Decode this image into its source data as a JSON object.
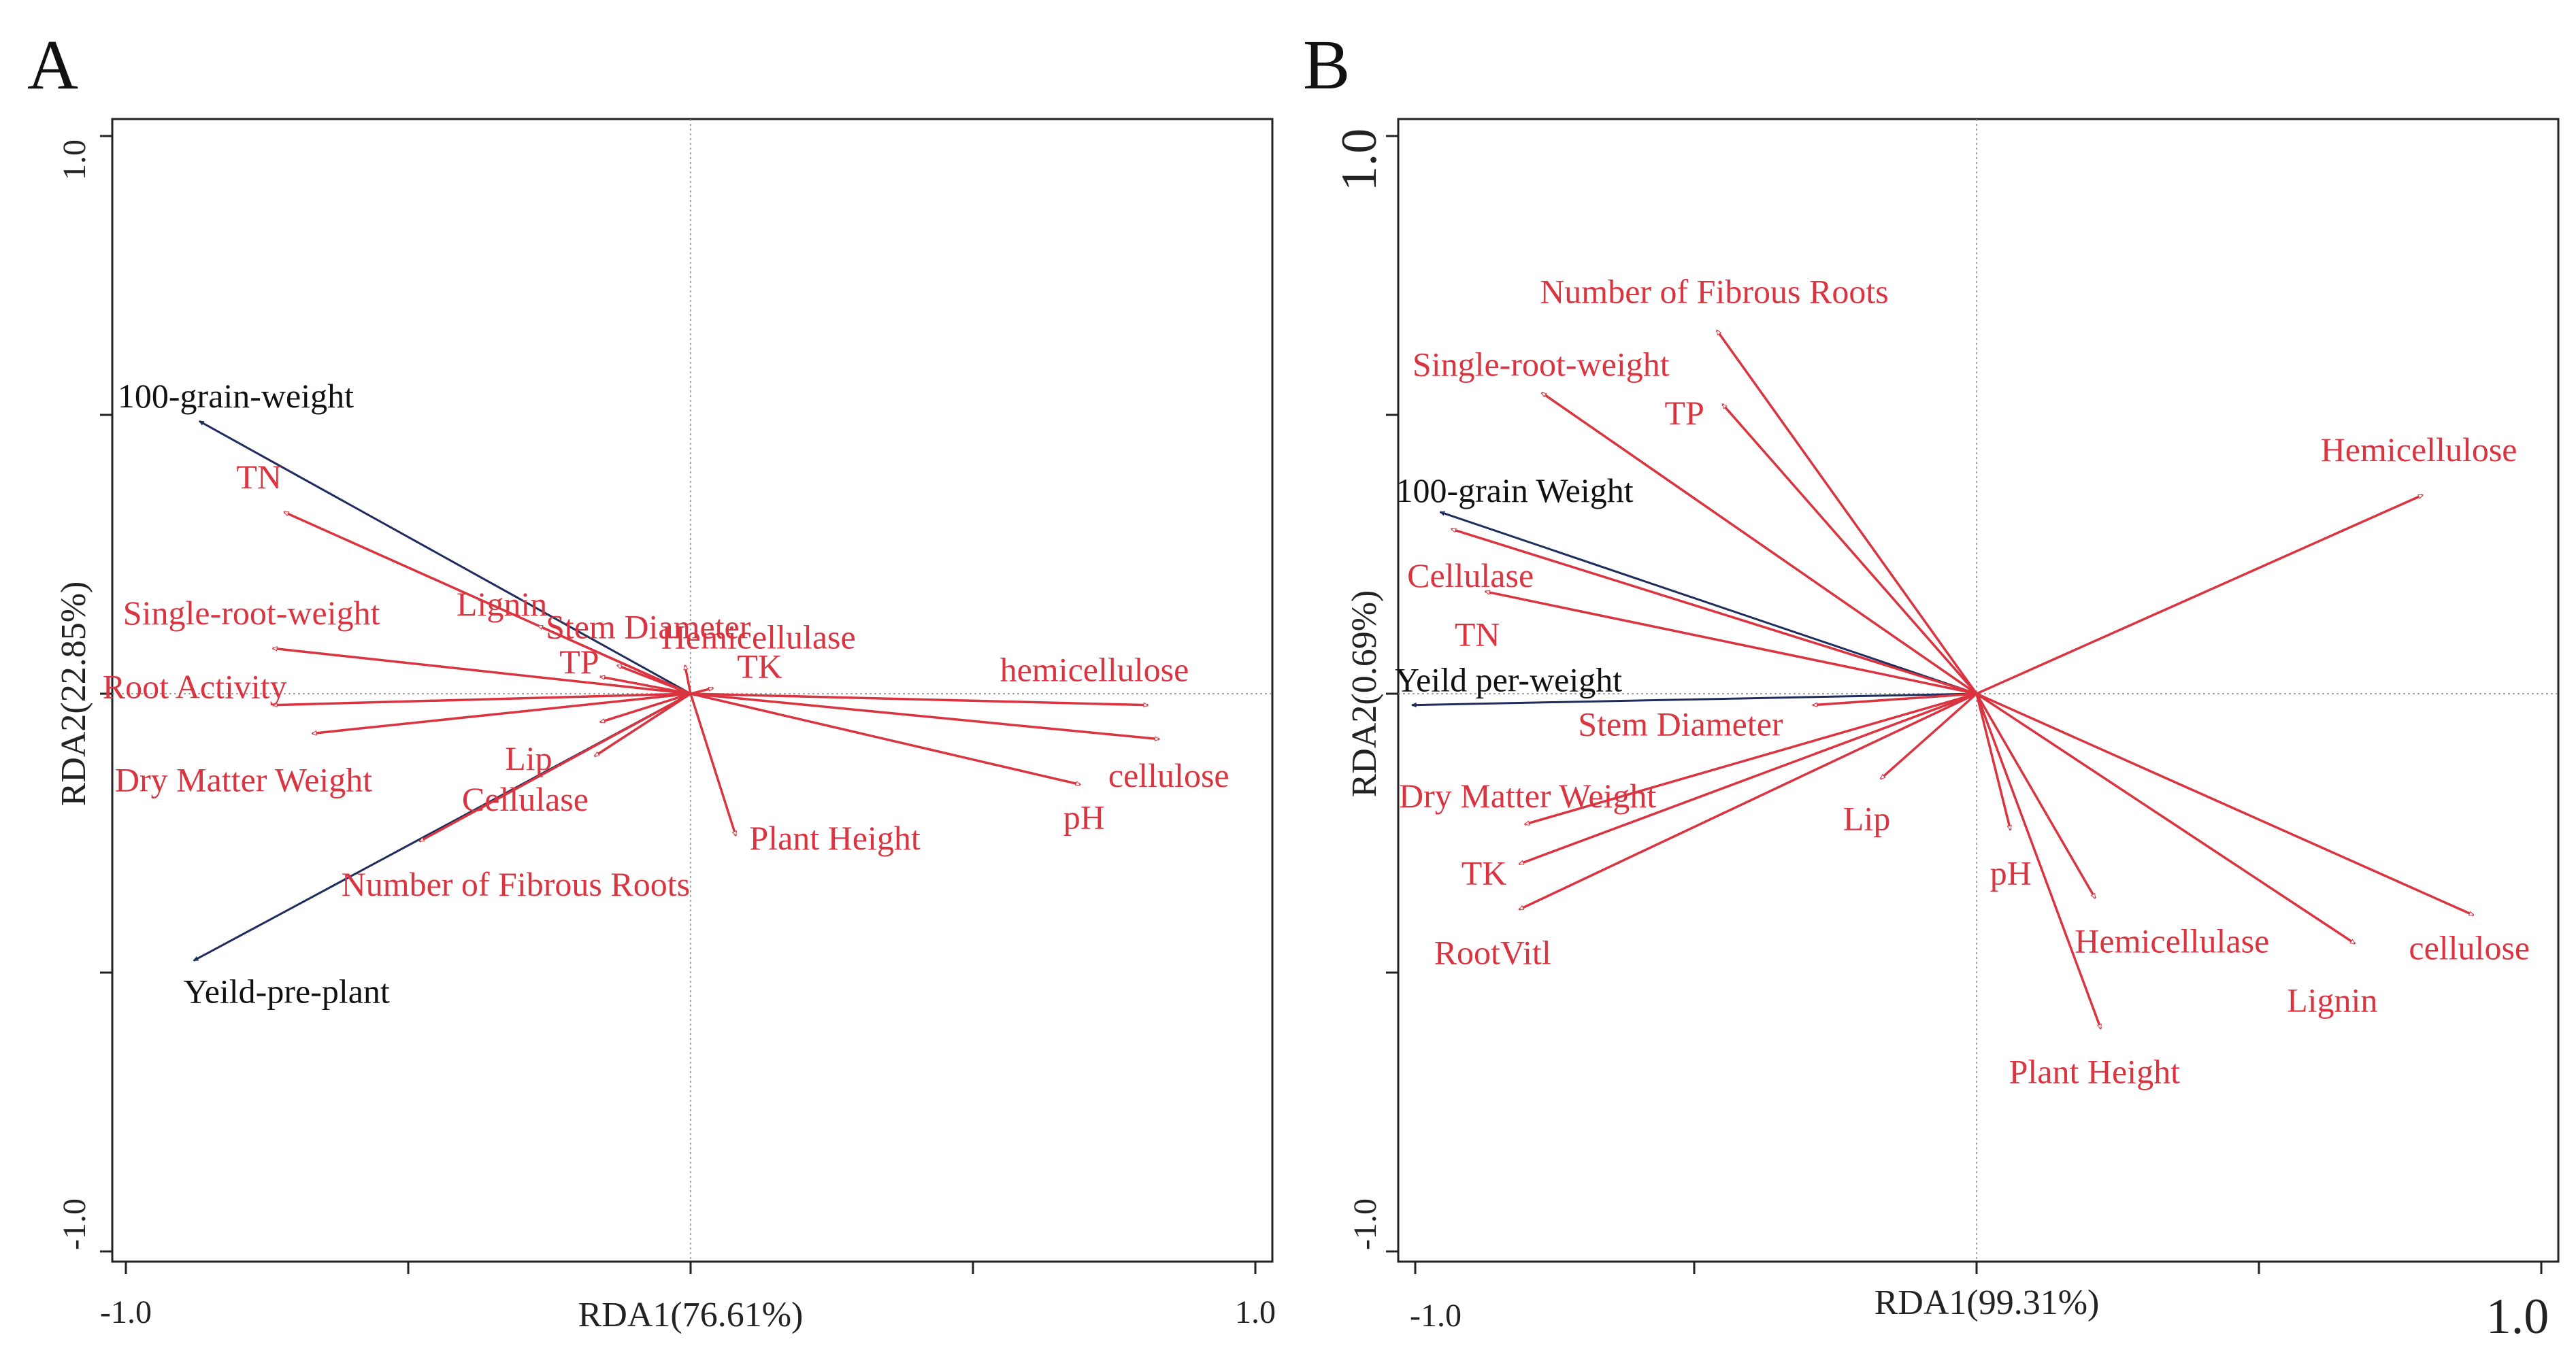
{
  "chart_data": [
    {
      "panel_label": "A",
      "type": "biplot",
      "xlabel": "RDA1(76.61%)",
      "ylabel": "RDA2(22.85%)",
      "xlim": [
        -1.0,
        1.0
      ],
      "ylim": [
        -1.0,
        1.0
      ],
      "x_tick_labels": [
        "-1.0",
        "1.0"
      ],
      "y_tick_labels": [
        "-1.0",
        "1.0"
      ],
      "series": [
        {
          "name": "response",
          "color": "#1f2d5c",
          "points": [
            {
              "label": "100-grain-weight",
              "x": -0.87,
              "y": 0.48
            },
            {
              "label": "Yeild-pre-plant",
              "x": -0.88,
              "y": -0.47
            }
          ]
        },
        {
          "name": "explanatory",
          "color": "#d9343f",
          "points": [
            {
              "label": "TN",
              "x": -0.72,
              "y": 0.32
            },
            {
              "label": "Single-root-weight",
              "x": -0.74,
              "y": 0.08
            },
            {
              "label": "Root Activity",
              "x": -0.74,
              "y": -0.02
            },
            {
              "label": "Dry Matter Weight",
              "x": -0.67,
              "y": -0.07
            },
            {
              "label": "Number of Fibrous Roots",
              "x": -0.48,
              "y": -0.26
            },
            {
              "label": "Lignin",
              "x": -0.27,
              "y": 0.12
            },
            {
              "label": "Stem Diameter",
              "x": -0.13,
              "y": 0.05
            },
            {
              "label": "TP",
              "x": -0.16,
              "y": 0.03
            },
            {
              "label": "Hemicellulase",
              "x": -0.01,
              "y": 0.05
            },
            {
              "label": "Lip",
              "x": -0.16,
              "y": -0.05
            },
            {
              "label": "Cellulase",
              "x": -0.17,
              "y": -0.11
            },
            {
              "label": "TK",
              "x": 0.04,
              "y": 0.01
            },
            {
              "label": "Plant Height",
              "x": 0.08,
              "y": -0.25
            },
            {
              "label": "hemicellulose",
              "x": 0.81,
              "y": -0.02
            },
            {
              "label": "cellulose",
              "x": 0.83,
              "y": -0.08
            },
            {
              "label": "pH",
              "x": 0.69,
              "y": -0.16
            }
          ]
        }
      ]
    },
    {
      "panel_label": "B",
      "type": "biplot",
      "xlabel": "RDA1(99.31%)",
      "ylabel": "RDA2(0.69%)",
      "xlim": [
        -1.0,
        1.0
      ],
      "ylim": [
        -1.0,
        1.0
      ],
      "x_tick_labels": [
        "-1.0",
        "1.0"
      ],
      "y_tick_labels": [
        "-1.0",
        "1.0"
      ],
      "series": [
        {
          "name": "response",
          "color": "#1f2d5c",
          "points": [
            {
              "label": "100-grain Weight",
              "x": -0.95,
              "y": 0.32
            },
            {
              "label": "Yeild per-weight",
              "x": -1.0,
              "y": -0.02
            }
          ]
        },
        {
          "name": "explanatory",
          "color": "#d9343f",
          "points": [
            {
              "label": "Number of Fibrous Roots",
              "x": -0.46,
              "y": 0.64
            },
            {
              "label": "Single-root-weight",
              "x": -0.77,
              "y": 0.53
            },
            {
              "label": "TP",
              "x": -0.45,
              "y": 0.51
            },
            {
              "label": "Cellulase",
              "x": -0.93,
              "y": 0.29
            },
            {
              "label": "TN",
              "x": -0.87,
              "y": 0.18
            },
            {
              "label": "Stem Diameter",
              "x": -0.29,
              "y": -0.02
            },
            {
              "label": "Dry Matter Weight",
              "x": -0.8,
              "y": -0.23
            },
            {
              "label": "TK",
              "x": -0.81,
              "y": -0.3
            },
            {
              "label": "RootVitl",
              "x": -0.81,
              "y": -0.38
            },
            {
              "label": "Lip",
              "x": -0.17,
              "y": -0.15
            },
            {
              "label": "pH",
              "x": 0.06,
              "y": -0.24
            },
            {
              "label": "Hemicellulase",
              "x": 0.21,
              "y": -0.36
            },
            {
              "label": "Plant Height",
              "x": 0.22,
              "y": -0.59
            },
            {
              "label": "Lignin",
              "x": 0.67,
              "y": -0.44
            },
            {
              "label": "cellulose",
              "x": 0.88,
              "y": -0.39
            },
            {
              "label": "Hemicellulose",
              "x": 0.79,
              "y": 0.35
            }
          ]
        }
      ]
    }
  ]
}
